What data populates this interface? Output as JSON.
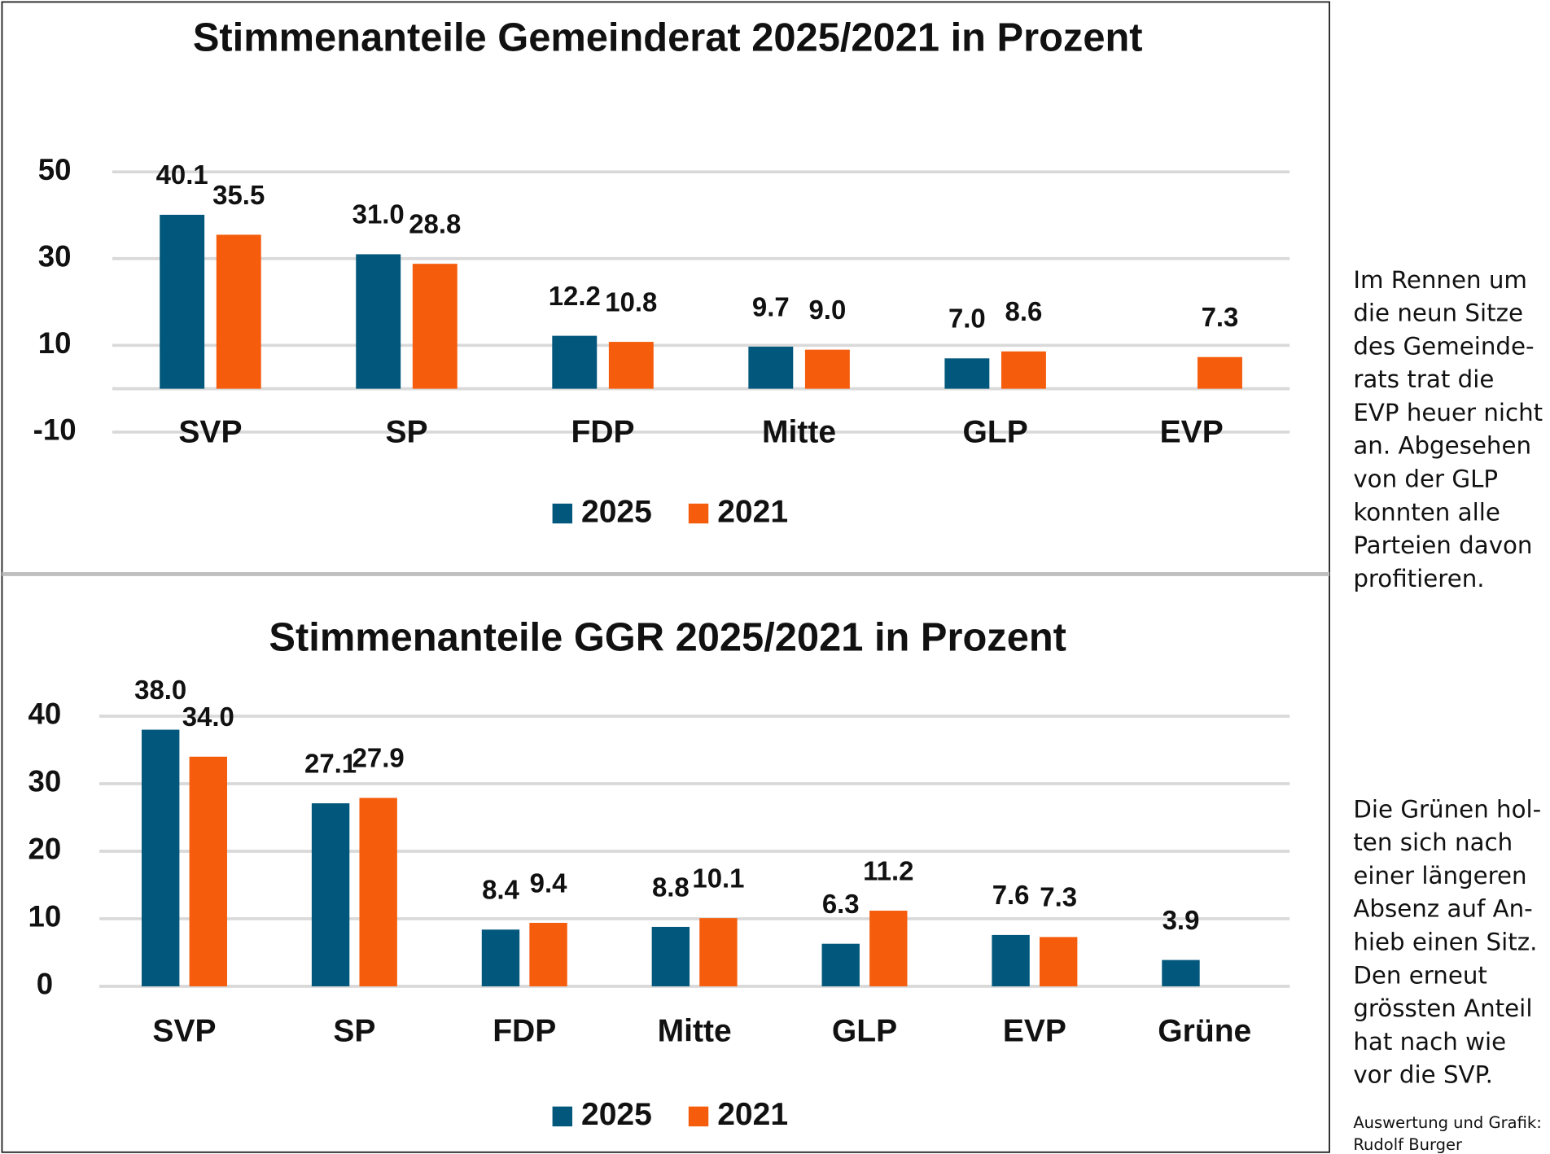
{
  "chart_data": [
    {
      "type": "bar",
      "title": "Stimmenanteile Gemeinderat 2025/2021 in Prozent",
      "categories": [
        "SVP",
        "SP",
        "FDP",
        "Mitte",
        "GLP",
        "EVP"
      ],
      "series": [
        {
          "name": "2025",
          "color": "#02587c",
          "values": [
            40.1,
            31.0,
            12.2,
            9.7,
            7.0,
            null
          ],
          "value_labels": [
            "40.1",
            "31.0",
            "12.2",
            "9.7",
            "7.0",
            null
          ]
        },
        {
          "name": "2021",
          "color": "#f55d0c",
          "values": [
            35.5,
            28.8,
            10.8,
            9.0,
            8.6,
            7.3
          ],
          "value_labels": [
            "35.5",
            "28.8",
            "10.8",
            "9.0",
            "8.6",
            "7.3"
          ]
        }
      ],
      "ylim": [
        -10,
        50
      ],
      "yticks": [
        -10,
        10,
        30,
        50
      ],
      "grid": true,
      "legend": "bottom"
    },
    {
      "type": "bar",
      "title": "Stimmenanteile GGR 2025/2021 in Prozent",
      "categories": [
        "SVP",
        "SP",
        "FDP",
        "Mitte",
        "GLP",
        "EVP",
        "Grüne"
      ],
      "series": [
        {
          "name": "2025",
          "color": "#02587c",
          "values": [
            38.0,
            27.1,
            8.4,
            8.8,
            6.3,
            7.6,
            3.9
          ],
          "value_labels": [
            "38.0",
            "27.1",
            "8.4",
            "8.8",
            "6.3",
            "7.6",
            "3.9"
          ]
        },
        {
          "name": "2021",
          "color": "#f55d0c",
          "values": [
            34.0,
            27.9,
            9.4,
            10.1,
            11.2,
            7.3,
            null
          ],
          "value_labels": [
            "34.0",
            "27.9",
            "9.4",
            "10.1",
            "11.2",
            "7.3",
            null
          ]
        }
      ],
      "ylim": [
        0,
        40
      ],
      "yticks": [
        0,
        10,
        20,
        30,
        40
      ],
      "grid": true,
      "legend": "bottom"
    }
  ],
  "notes": {
    "paragraphs": [
      [
        "Im Rennen um",
        "die neun Sitze",
        "des Gemeinde-",
        "rats trat die",
        "EVP heuer nicht",
        "an. Abgesehen",
        "von der GLP",
        "konnten alle",
        "Parteien davon",
        "profitieren."
      ],
      [
        "Die Grünen hol-",
        "ten sich nach",
        "einer längeren",
        "Absenz auf An-",
        "hieb einen Sitz.",
        "Den erneut",
        "grössten Anteil",
        "hat nach wie",
        "vor die SVP."
      ]
    ],
    "credit": [
      "Auswertung und Grafik:",
      "Rudolf Burger"
    ]
  }
}
